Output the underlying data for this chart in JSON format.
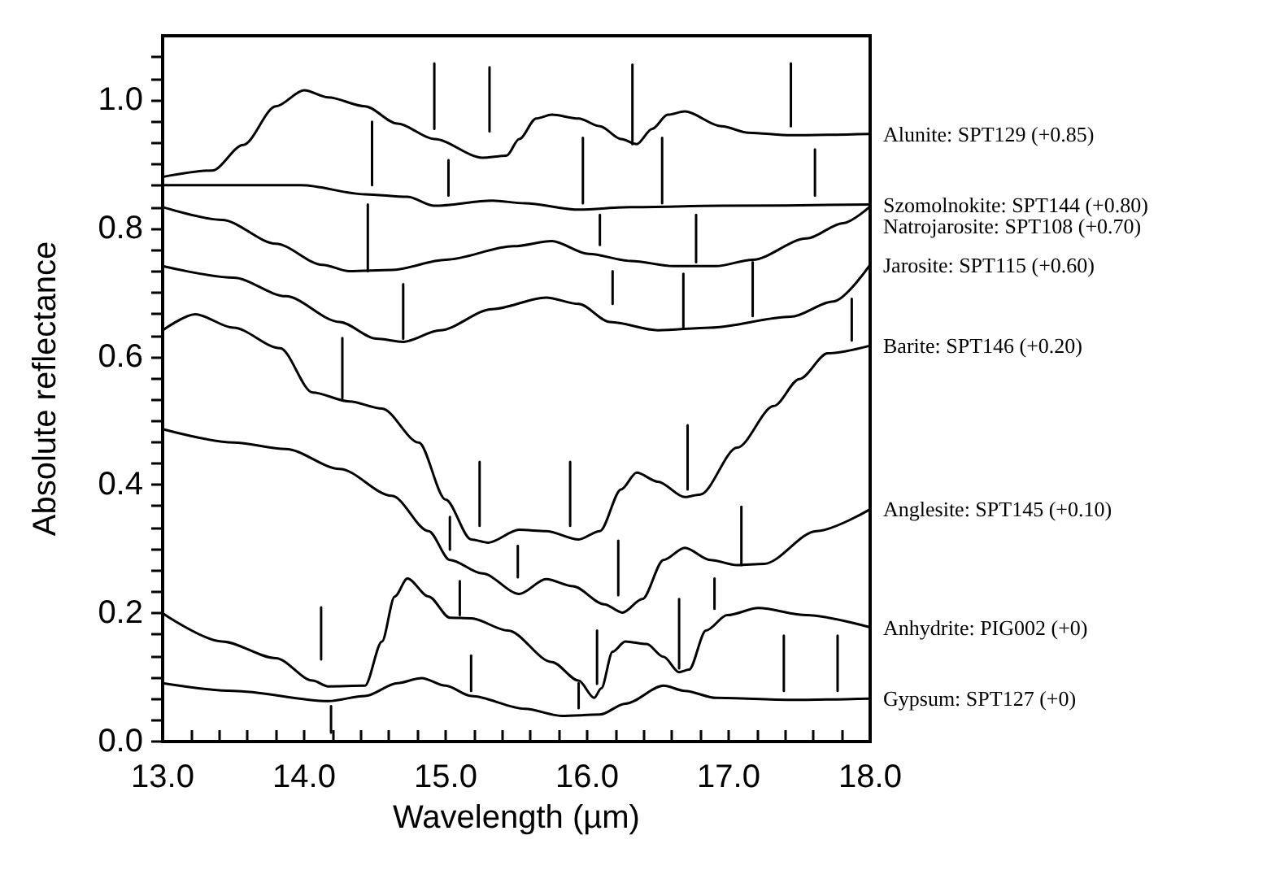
{
  "chart_data": {
    "type": "line",
    "xlabel": "Wavelength (µm)",
    "ylabel": "Absolute reflectance",
    "xlim": [
      13,
      18
    ],
    "ylim": [
      0,
      1.1
    ],
    "xticks": [
      {
        "value": 13,
        "label": "13.0"
      },
      {
        "value": 13.2,
        "label": null
      },
      {
        "value": 13.4,
        "label": null
      },
      {
        "value": 13.6,
        "label": null
      },
      {
        "value": 13.8,
        "label": null
      },
      {
        "value": 14,
        "label": "14.0"
      },
      {
        "value": 14.2,
        "label": null
      },
      {
        "value": 14.4,
        "label": null
      },
      {
        "value": 14.6,
        "label": null
      },
      {
        "value": 14.8,
        "label": null
      },
      {
        "value": 15,
        "label": "15.0"
      },
      {
        "value": 15.2,
        "label": null
      },
      {
        "value": 15.4,
        "label": null
      },
      {
        "value": 15.6,
        "label": null
      },
      {
        "value": 15.8,
        "label": null
      },
      {
        "value": 16,
        "label": "16.0"
      },
      {
        "value": 16.2,
        "label": null
      },
      {
        "value": 16.4,
        "label": null
      },
      {
        "value": 16.6,
        "label": null
      },
      {
        "value": 16.8,
        "label": null
      },
      {
        "value": 17,
        "label": "17.0"
      },
      {
        "value": 17.2,
        "label": null
      },
      {
        "value": 17.4,
        "label": null
      },
      {
        "value": 17.6,
        "label": null
      },
      {
        "value": 17.8,
        "label": null
      },
      {
        "value": 18,
        "label": "18.0"
      }
    ],
    "yticks": [
      {
        "value": 0,
        "label": "0.0"
      },
      {
        "value": 0.033,
        "label": null
      },
      {
        "value": 0.067,
        "label": null
      },
      {
        "value": 0.1,
        "label": null
      },
      {
        "value": 0.133,
        "label": null
      },
      {
        "value": 0.167,
        "label": null
      },
      {
        "value": 0.2,
        "label": "0.2"
      },
      {
        "value": 0.233,
        "label": null
      },
      {
        "value": 0.267,
        "label": null
      },
      {
        "value": 0.3,
        "label": null
      },
      {
        "value": 0.333,
        "label": null
      },
      {
        "value": 0.367,
        "label": null
      },
      {
        "value": 0.4,
        "label": "0.4"
      },
      {
        "value": 0.433,
        "label": null
      },
      {
        "value": 0.467,
        "label": null
      },
      {
        "value": 0.5,
        "label": null
      },
      {
        "value": 0.533,
        "label": null
      },
      {
        "value": 0.567,
        "label": null
      },
      {
        "value": 0.6,
        "label": "0.6"
      },
      {
        "value": 0.633,
        "label": null
      },
      {
        "value": 0.667,
        "label": null
      },
      {
        "value": 0.7,
        "label": null
      },
      {
        "value": 0.733,
        "label": null
      },
      {
        "value": 0.767,
        "label": null
      },
      {
        "value": 0.8,
        "label": "0.8"
      },
      {
        "value": 0.833,
        "label": null
      },
      {
        "value": 0.867,
        "label": null
      },
      {
        "value": 0.9,
        "label": null
      },
      {
        "value": 0.933,
        "label": null
      },
      {
        "value": 0.967,
        "label": null
      },
      {
        "value": 1.0,
        "label": "1.0"
      },
      {
        "value": 1.033,
        "label": null
      },
      {
        "value": 1.067,
        "label": null
      }
    ],
    "grid": false,
    "legend": false,
    "marker": "none",
    "line_style": "solid",
    "series": [
      {
        "name": "Alunite: SPT129 (+0.85)",
        "color": "#000000",
        "x": [
          13,
          13.35,
          13.57,
          13.8,
          14.0,
          14.17,
          14.43,
          14.66,
          14.92,
          15.26,
          15.43,
          15.52,
          15.64,
          15.75,
          15.94,
          16.09,
          16.24,
          16.35,
          16.46,
          16.57,
          16.69,
          16.95,
          17.14,
          17.44,
          18
        ],
        "values": [
          0.88,
          0.89,
          0.93,
          0.99,
          1.015,
          1.004,
          0.99,
          0.963,
          0.939,
          0.91,
          0.913,
          0.939,
          0.971,
          0.977,
          0.971,
          0.959,
          0.939,
          0.931,
          0.955,
          0.977,
          0.982,
          0.959,
          0.949,
          0.945,
          0.947
        ]
      },
      {
        "name": "Szomolnokite: SPT144 (+0.80)",
        "color": "#000000",
        "x": [
          13,
          13.98,
          14.43,
          14.73,
          14.92,
          15.33,
          15.56,
          15.94,
          16.31,
          16.95,
          18
        ],
        "values": [
          0.867,
          0.867,
          0.853,
          0.849,
          0.835,
          0.843,
          0.839,
          0.829,
          0.833,
          0.835,
          0.837
        ]
      },
      {
        "name": "Natrojarosite: SPT108 (+0.70)",
        "color": "#000000",
        "x": [
          13,
          13.42,
          13.8,
          14.13,
          14.32,
          14.62,
          15.0,
          15.48,
          15.75,
          16.01,
          16.31,
          16.61,
          16.91,
          17.17,
          17.55,
          17.81,
          18
        ],
        "values": [
          0.833,
          0.813,
          0.776,
          0.743,
          0.733,
          0.735,
          0.751,
          0.772,
          0.78,
          0.76,
          0.749,
          0.741,
          0.741,
          0.751,
          0.784,
          0.808,
          0.834
        ]
      },
      {
        "name": "Jarosite: SPT115 (+0.60)",
        "color": "#000000",
        "x": [
          13,
          13.5,
          13.87,
          14.25,
          14.51,
          14.7,
          14.96,
          15.33,
          15.71,
          15.94,
          16.16,
          16.5,
          16.87,
          17.44,
          17.74,
          18
        ],
        "values": [
          0.741,
          0.723,
          0.694,
          0.654,
          0.628,
          0.623,
          0.641,
          0.674,
          0.692,
          0.682,
          0.654,
          0.641,
          0.645,
          0.662,
          0.686,
          0.743
        ]
      },
      {
        "name": "Barite: SPT146 (+0.20)",
        "color": "#000000",
        "x": [
          13,
          13.23,
          13.5,
          13.83,
          14.06,
          14.32,
          14.55,
          14.81,
          15.0,
          15.18,
          15.3,
          15.52,
          15.71,
          15.94,
          16.09,
          16.24,
          16.35,
          16.5,
          16.69,
          16.8,
          17.06,
          17.32,
          17.5,
          17.7,
          18
        ],
        "values": [
          0.641,
          0.666,
          0.645,
          0.613,
          0.544,
          0.53,
          0.519,
          0.466,
          0.377,
          0.315,
          0.31,
          0.33,
          0.328,
          0.315,
          0.328,
          0.393,
          0.419,
          0.405,
          0.381,
          0.385,
          0.458,
          0.523,
          0.565,
          0.605,
          0.617
        ]
      },
      {
        "name": "Anglesite: SPT145 (+0.10)",
        "color": "#000000",
        "x": [
          13,
          13.5,
          13.87,
          14.25,
          14.62,
          14.88,
          15.03,
          15.26,
          15.52,
          15.71,
          15.9,
          16.12,
          16.25,
          16.39,
          16.54,
          16.69,
          16.87,
          17.06,
          17.25,
          17.62,
          18
        ],
        "values": [
          0.487,
          0.466,
          0.456,
          0.425,
          0.383,
          0.328,
          0.283,
          0.262,
          0.23,
          0.253,
          0.242,
          0.214,
          0.201,
          0.222,
          0.283,
          0.302,
          0.283,
          0.275,
          0.277,
          0.328,
          0.362
        ]
      },
      {
        "name": "Anhydrite: PIG002 (+0)",
        "color": "#000000",
        "x": [
          13,
          13.42,
          13.8,
          14.06,
          14.17,
          14.43,
          14.55,
          14.64,
          14.73,
          14.88,
          15.03,
          15.18,
          15.44,
          15.75,
          15.94,
          16.05,
          16.1,
          16.18,
          16.27,
          16.42,
          16.54,
          16.65,
          16.72,
          16.84,
          16.99,
          17.21,
          17.55,
          18
        ],
        "values": [
          0.2,
          0.156,
          0.13,
          0.095,
          0.086,
          0.087,
          0.156,
          0.226,
          0.254,
          0.226,
          0.193,
          0.192,
          0.173,
          0.124,
          0.095,
          0.068,
          0.083,
          0.14,
          0.156,
          0.152,
          0.132,
          0.108,
          0.112,
          0.173,
          0.197,
          0.208,
          0.197,
          0.178
        ]
      },
      {
        "name": "Gypsum: SPT127 (+0)",
        "color": "#000000",
        "x": [
          13,
          13.5,
          14.17,
          14.43,
          14.66,
          14.83,
          15.0,
          15.18,
          15.56,
          15.82,
          16.09,
          16.27,
          16.54,
          16.69,
          16.91,
          17.44,
          18
        ],
        "values": [
          0.091,
          0.079,
          0.063,
          0.071,
          0.091,
          0.099,
          0.087,
          0.071,
          0.051,
          0.04,
          0.042,
          0.059,
          0.087,
          0.079,
          0.068,
          0.065,
          0.067
        ]
      },
      {
        "color": "#000000",
        "x": [
          14.92,
          14.92
        ],
        "values": [
          1.057,
          0.955
        ]
      },
      {
        "color": "#000000",
        "x": [
          15.31,
          15.31
        ],
        "values": [
          1.051,
          0.951
        ]
      },
      {
        "color": "#000000",
        "x": [
          16.32,
          16.32
        ],
        "values": [
          1.055,
          0.931
        ]
      },
      {
        "color": "#000000",
        "x": [
          17.44,
          17.44
        ],
        "values": [
          1.057,
          0.959
        ]
      },
      {
        "color": "#000000",
        "x": [
          14.48,
          14.48
        ],
        "values": [
          0.966,
          0.867
        ]
      },
      {
        "color": "#000000",
        "x": [
          15.02,
          15.02
        ],
        "values": [
          0.906,
          0.851
        ]
      },
      {
        "color": "#000000",
        "x": [
          15.97,
          15.97
        ],
        "values": [
          0.941,
          0.839
        ]
      },
      {
        "color": "#000000",
        "x": [
          16.53,
          16.53
        ],
        "values": [
          0.941,
          0.839
        ]
      },
      {
        "color": "#000000",
        "x": [
          17.61,
          17.61
        ],
        "values": [
          0.923,
          0.851
        ]
      },
      {
        "color": "#000000",
        "x": [
          14.45,
          14.45
        ],
        "values": [
          0.837,
          0.733
        ]
      },
      {
        "color": "#000000",
        "x": [
          16.09,
          16.09
        ],
        "values": [
          0.821,
          0.774
        ]
      },
      {
        "color": "#000000",
        "x": [
          16.77,
          16.77
        ],
        "values": [
          0.821,
          0.747
        ]
      },
      {
        "color": "#000000",
        "x": [
          14.7,
          14.7
        ],
        "values": [
          0.713,
          0.628
        ]
      },
      {
        "color": "#000000",
        "x": [
          16.18,
          16.18
        ],
        "values": [
          0.733,
          0.682
        ]
      },
      {
        "color": "#000000",
        "x": [
          16.68,
          16.68
        ],
        "values": [
          0.729,
          0.645
        ]
      },
      {
        "color": "#000000",
        "x": [
          17.17,
          17.17
        ],
        "values": [
          0.747,
          0.663
        ]
      },
      {
        "color": "#000000",
        "x": [
          17.87,
          17.87
        ],
        "values": [
          0.69,
          0.625
        ]
      },
      {
        "color": "#000000",
        "x": [
          14.27,
          14.27
        ],
        "values": [
          0.629,
          0.535
        ]
      },
      {
        "color": "#000000",
        "x": [
          15.24,
          15.24
        ],
        "values": [
          0.436,
          0.336
        ]
      },
      {
        "color": "#000000",
        "x": [
          15.88,
          15.88
        ],
        "values": [
          0.436,
          0.336
        ]
      },
      {
        "color": "#000000",
        "x": [
          16.71,
          16.71
        ],
        "values": [
          0.493,
          0.393
        ]
      },
      {
        "color": "#000000",
        "x": [
          15.03,
          15.03
        ],
        "values": [
          0.35,
          0.299
        ]
      },
      {
        "color": "#000000",
        "x": [
          15.51,
          15.51
        ],
        "values": [
          0.305,
          0.256
        ]
      },
      {
        "color": "#000000",
        "x": [
          16.22,
          16.22
        ],
        "values": [
          0.313,
          0.228
        ]
      },
      {
        "color": "#000000",
        "x": [
          17.09,
          17.09
        ],
        "values": [
          0.366,
          0.275
        ]
      },
      {
        "color": "#000000",
        "x": [
          14.12,
          14.12
        ],
        "values": [
          0.209,
          0.128
        ]
      },
      {
        "color": "#000000",
        "x": [
          15.1,
          15.1
        ],
        "values": [
          0.25,
          0.197
        ]
      },
      {
        "color": "#000000",
        "x": [
          16.07,
          16.07
        ],
        "values": [
          0.173,
          0.09
        ]
      },
      {
        "color": "#000000",
        "x": [
          16.65,
          16.65
        ],
        "values": [
          0.222,
          0.114
        ]
      },
      {
        "color": "#000000",
        "x": [
          16.9,
          16.9
        ],
        "values": [
          0.254,
          0.207
        ]
      },
      {
        "color": "#000000",
        "x": [
          14.19,
          14.19
        ],
        "values": [
          0.055,
          0.014
        ]
      },
      {
        "color": "#000000",
        "x": [
          15.18,
          15.18
        ],
        "values": [
          0.134,
          0.079
        ]
      },
      {
        "color": "#000000",
        "x": [
          15.94,
          15.94
        ],
        "values": [
          0.091,
          0.052
        ]
      },
      {
        "color": "#000000",
        "x": [
          17.39,
          17.39
        ],
        "values": [
          0.165,
          0.079
        ]
      },
      {
        "color": "#000000",
        "x": [
          17.77,
          17.77
        ],
        "values": [
          0.165,
          0.079
        ]
      }
    ]
  }
}
